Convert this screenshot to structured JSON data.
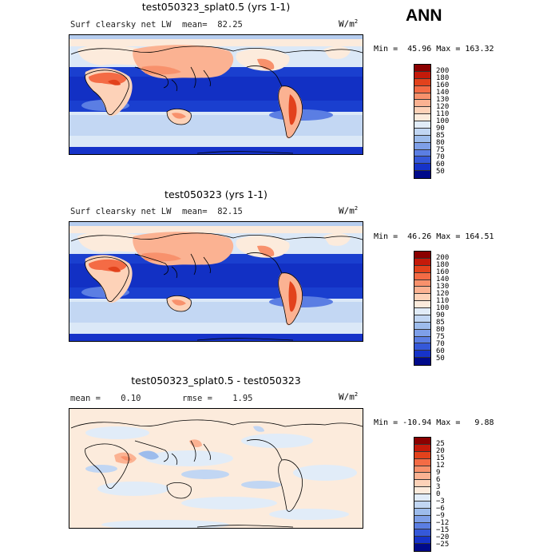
{
  "season": "ANN",
  "panels": [
    {
      "title": "test050323_splat0.5 (yrs 1-1)",
      "variable": "Surf clearsky net LW",
      "stat_left": "",
      "stat_right": "mean=  82.25",
      "units": "W/m",
      "units_exp": "2",
      "minmax": "Min =  45.96 Max = 163.32",
      "levels": [
        "200",
        "180",
        "160",
        "140",
        "130",
        "120",
        "110",
        "100",
        "90",
        "85",
        "80",
        "75",
        "70",
        "60",
        "50"
      ],
      "colors": [
        "#8b0000",
        "#c41a0a",
        "#e2421c",
        "#f46b45",
        "#f8916c",
        "#fbb292",
        "#fdd2b8",
        "#fcebdc",
        "#e1ecf8",
        "#c1d6f3",
        "#9dbcec",
        "#7e9fe8",
        "#5b7ee3",
        "#3558d9",
        "#1633c9",
        "#000a8a"
      ]
    },
    {
      "title": "test050323 (yrs 1-1)",
      "variable": "Surf clearsky net LW",
      "stat_left": "",
      "stat_right": "mean=  82.15",
      "units": "W/m",
      "units_exp": "2",
      "minmax": "Min =  46.26 Max = 164.51",
      "levels": [
        "200",
        "180",
        "160",
        "140",
        "130",
        "120",
        "110",
        "100",
        "90",
        "85",
        "80",
        "75",
        "70",
        "60",
        "50"
      ],
      "colors": [
        "#8b0000",
        "#c41a0a",
        "#e2421c",
        "#f46b45",
        "#f8916c",
        "#fbb292",
        "#fdd2b8",
        "#fcebdc",
        "#e1ecf8",
        "#c1d6f3",
        "#9dbcec",
        "#7e9fe8",
        "#5b7ee3",
        "#3558d9",
        "#1633c9",
        "#000a8a"
      ]
    },
    {
      "title": "test050323_splat0.5 - test050323",
      "variable": "",
      "stat_left": "mean =    0.10",
      "stat_right": "rmse =    1.95",
      "units": "W/m",
      "units_exp": "2",
      "minmax": "Min = -10.94 Max =   9.88",
      "levels": [
        "25",
        "20",
        "15",
        "12",
        "9",
        "6",
        "3",
        "0",
        "−3",
        "−6",
        "−9",
        "−12",
        "−15",
        "−20",
        "−25"
      ],
      "colors": [
        "#8b0000",
        "#c41a0a",
        "#e2421c",
        "#f46b45",
        "#f8916c",
        "#fbb292",
        "#fdd2b8",
        "#fcebdc",
        "#e1ecf8",
        "#c1d6f3",
        "#9dbcec",
        "#7e9fe8",
        "#5b7ee3",
        "#3558d9",
        "#1633c9",
        "#000a8a"
      ]
    }
  ]
}
